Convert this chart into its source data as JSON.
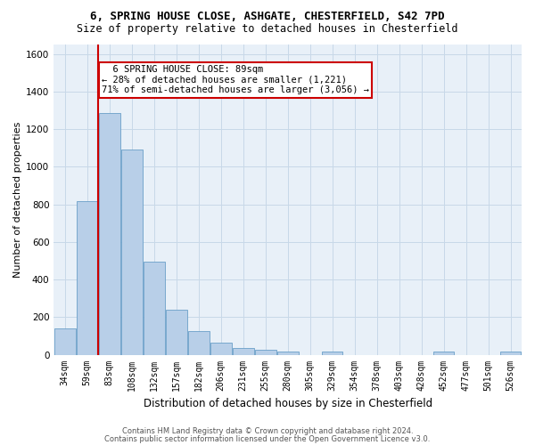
{
  "title_line1": "6, SPRING HOUSE CLOSE, ASHGATE, CHESTERFIELD, S42 7PD",
  "title_line2": "Size of property relative to detached houses in Chesterfield",
  "xlabel": "Distribution of detached houses by size in Chesterfield",
  "ylabel": "Number of detached properties",
  "footer_line1": "Contains HM Land Registry data © Crown copyright and database right 2024.",
  "footer_line2": "Contains public sector information licensed under the Open Government Licence v3.0.",
  "bar_color": "#b8cfe8",
  "bar_edge_color": "#6a9fc8",
  "grid_color": "#c8d8e8",
  "background_color": "#e8f0f8",
  "annotation_box_color": "#cc0000",
  "annotation_line1": "  6 SPRING HOUSE CLOSE: 89sqm",
  "annotation_line2": "← 28% of detached houses are smaller (1,221)",
  "annotation_line3": "71% of semi-detached houses are larger (3,056) →",
  "categories": [
    "34sqm",
    "59sqm",
    "83sqm",
    "108sqm",
    "132sqm",
    "157sqm",
    "182sqm",
    "206sqm",
    "231sqm",
    "255sqm",
    "280sqm",
    "305sqm",
    "329sqm",
    "354sqm",
    "378sqm",
    "403sqm",
    "428sqm",
    "452sqm",
    "477sqm",
    "501sqm",
    "526sqm"
  ],
  "bar_heights": [
    140,
    815,
    1285,
    1090,
    495,
    238,
    128,
    65,
    38,
    27,
    18,
    0,
    18,
    0,
    0,
    0,
    0,
    15,
    0,
    0,
    15
  ],
  "ylim": [
    0,
    1650
  ],
  "yticks": [
    0,
    200,
    400,
    600,
    800,
    1000,
    1200,
    1400,
    1600
  ],
  "property_line_bin": 2,
  "title_fontsize": 9,
  "subtitle_fontsize": 8.5,
  "ylabel_fontsize": 8,
  "xlabel_fontsize": 8.5,
  "tick_fontsize": 7,
  "footer_fontsize": 6,
  "annot_fontsize": 7.5
}
